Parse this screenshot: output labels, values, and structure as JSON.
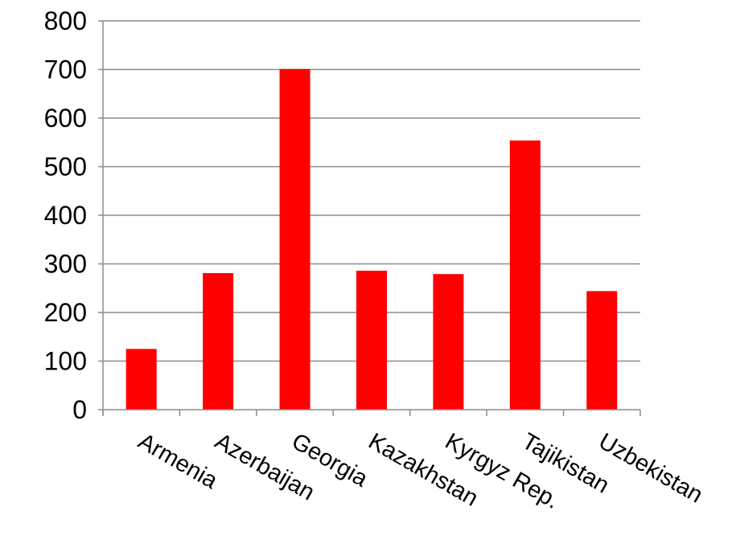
{
  "chart_data": {
    "type": "bar",
    "title": "",
    "xlabel": "",
    "ylabel": "",
    "categories": [
      "Armenia",
      "Azerbaijan",
      "Georgia",
      "Kazakhstan",
      "Kyrgyz Rep.",
      "Tajikistan",
      "Uzbekistan"
    ],
    "values": [
      125,
      281,
      701,
      286,
      279,
      554,
      244
    ],
    "ylim": [
      0,
      800
    ],
    "yticks": [
      "0",
      "100",
      "200",
      "300",
      "400",
      "500",
      "600",
      "700",
      "800"
    ],
    "grid": "horizontal",
    "legend": "none",
    "bar_color": "#ff0000",
    "grid_color": "#8c8c8c",
    "axis_color": "#8c8c8c"
  }
}
